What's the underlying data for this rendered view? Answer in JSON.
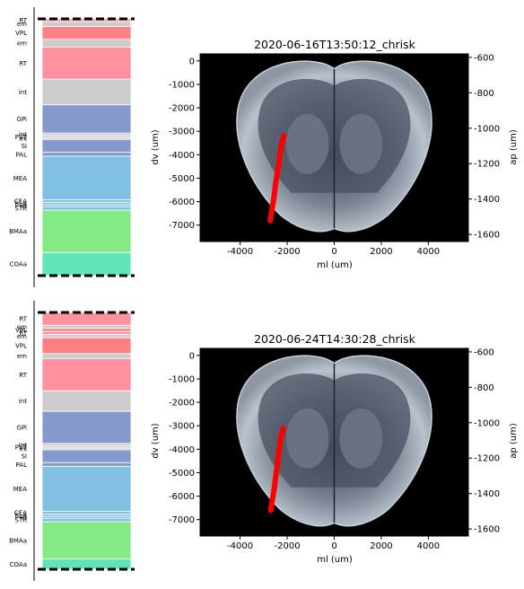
{
  "chart_data": [
    {
      "type": "bar",
      "subtype": "stacked-region-column",
      "regions": [
        {
          "label": "RT",
          "from": 0.0,
          "to": 0.01,
          "color": "#ff909f"
        },
        {
          "label": "em",
          "from": 0.01,
          "to": 0.03,
          "color": "#cccccc"
        },
        {
          "label": "VPL",
          "from": 0.03,
          "to": 0.08,
          "color": "#ff8080"
        },
        {
          "label": "em",
          "from": 0.08,
          "to": 0.11,
          "color": "#cccccc"
        },
        {
          "label": "RT",
          "from": 0.11,
          "to": 0.235,
          "color": "#ff909f"
        },
        {
          "label": "int",
          "from": 0.235,
          "to": 0.335,
          "color": "#cccccc"
        },
        {
          "label": "GPi",
          "from": 0.335,
          "to": 0.445,
          "color": "#8599cc"
        },
        {
          "label": "int",
          "from": 0.445,
          "to": 0.455,
          "color": "#cccccc"
        },
        {
          "label": "PVT",
          "from": 0.455,
          "to": 0.463,
          "color": "#cccccc"
        },
        {
          "label": "ml",
          "from": 0.463,
          "to": 0.47,
          "color": "#cccccc"
        },
        {
          "label": "SI",
          "from": 0.47,
          "to": 0.52,
          "color": "#8599cc"
        },
        {
          "label": "PAL",
          "from": 0.52,
          "to": 0.535,
          "color": "#8599cc"
        },
        {
          "label": "MEA",
          "from": 0.535,
          "to": 0.705,
          "color": "#80c0e2"
        },
        {
          "label": "CEA",
          "from": 0.705,
          "to": 0.715,
          "color": "#80c0e2"
        },
        {
          "label": "BLA",
          "from": 0.715,
          "to": 0.724,
          "color": "#80c0e2"
        },
        {
          "label": "IA",
          "from": 0.724,
          "to": 0.732,
          "color": "#80c0e2"
        },
        {
          "label": "STR",
          "from": 0.732,
          "to": 0.745,
          "color": "#80c0e2"
        },
        {
          "label": "BMAa",
          "from": 0.745,
          "to": 0.91,
          "color": "#84ea84"
        },
        {
          "label": "COAa",
          "from": 0.91,
          "to": 1.0,
          "color": "#61e7b7"
        }
      ]
    },
    {
      "type": "scatter",
      "title": "2020-06-16T13:50:12_chrisk",
      "xlabel": "ml (um)",
      "ylabel": "dv (um)",
      "y2label": "ap (um)",
      "xlim": [
        -5700,
        5700
      ],
      "ylim": [
        -7700,
        300
      ],
      "y2lim": [
        -1640,
        -580
      ],
      "xticks": [
        -4000,
        -2000,
        0,
        2000,
        4000
      ],
      "yticks": [
        0,
        -1000,
        -2000,
        -3000,
        -4000,
        -5000,
        -6000,
        -7000
      ],
      "y2ticks": [
        -600,
        -800,
        -1000,
        -1200,
        -1400,
        -1600
      ],
      "series": [
        {
          "color": "#ff0000",
          "x": [
            -2720,
            -2640,
            -2560,
            -2500,
            -2420,
            -2360,
            -2320,
            -2280,
            -2240,
            -2180,
            -2140
          ],
          "y": [
            -6800,
            -6300,
            -5800,
            -5300,
            -4800,
            -4400,
            -4100,
            -3800,
            -3550,
            -3350,
            -3200
          ]
        }
      ]
    },
    {
      "type": "bar",
      "subtype": "stacked-region-column",
      "regions": [
        {
          "label": "RT",
          "from": 0.0,
          "to": 0.05,
          "color": "#ff909f"
        },
        {
          "label": "em",
          "from": 0.05,
          "to": 0.062,
          "color": "#cccccc"
        },
        {
          "label": "VPL",
          "from": 0.062,
          "to": 0.074,
          "color": "#ff8080"
        },
        {
          "label": "RT",
          "from": 0.074,
          "to": 0.086,
          "color": "#ff909f"
        },
        {
          "label": "em",
          "from": 0.086,
          "to": 0.098,
          "color": "#cccccc"
        },
        {
          "label": "VPL",
          "from": 0.098,
          "to": 0.16,
          "color": "#ff8080"
        },
        {
          "label": "em",
          "from": 0.16,
          "to": 0.18,
          "color": "#cccccc"
        },
        {
          "label": "RT",
          "from": 0.18,
          "to": 0.305,
          "color": "#ff909f"
        },
        {
          "label": "int",
          "from": 0.305,
          "to": 0.385,
          "color": "#cccccc"
        },
        {
          "label": "GPi",
          "from": 0.385,
          "to": 0.51,
          "color": "#8599cc"
        },
        {
          "label": "int",
          "from": 0.51,
          "to": 0.52,
          "color": "#cccccc"
        },
        {
          "label": "PVT",
          "from": 0.52,
          "to": 0.528,
          "color": "#cccccc"
        },
        {
          "label": "ml",
          "from": 0.528,
          "to": 0.535,
          "color": "#cccccc"
        },
        {
          "label": "SI",
          "from": 0.535,
          "to": 0.585,
          "color": "#8599cc"
        },
        {
          "label": "PAL",
          "from": 0.585,
          "to": 0.6,
          "color": "#8599cc"
        },
        {
          "label": "MEA",
          "from": 0.6,
          "to": 0.775,
          "color": "#80c0e2"
        },
        {
          "label": "CEA",
          "from": 0.775,
          "to": 0.785,
          "color": "#80c0e2"
        },
        {
          "label": "BLA",
          "from": 0.785,
          "to": 0.794,
          "color": "#80c0e2"
        },
        {
          "label": "IA",
          "from": 0.794,
          "to": 0.802,
          "color": "#80c0e2"
        },
        {
          "label": "STR",
          "from": 0.802,
          "to": 0.815,
          "color": "#80c0e2"
        },
        {
          "label": "BMAa",
          "from": 0.815,
          "to": 0.96,
          "color": "#84ea84"
        },
        {
          "label": "COAa",
          "from": 0.96,
          "to": 1.0,
          "color": "#61e7b7"
        }
      ]
    },
    {
      "type": "scatter",
      "title": "2020-06-24T14:30:28_chrisk",
      "xlabel": "ml (um)",
      "ylabel": "dv (um)",
      "y2label": "ap (um)",
      "xlim": [
        -5700,
        5700
      ],
      "ylim": [
        -7700,
        300
      ],
      "y2lim": [
        -1640,
        -580
      ],
      "xticks": [
        -4000,
        -2000,
        0,
        2000,
        4000
      ],
      "yticks": [
        0,
        -1000,
        -2000,
        -3000,
        -4000,
        -5000,
        -6000,
        -7000
      ],
      "y2ticks": [
        -600,
        -800,
        -1000,
        -1200,
        -1400,
        -1600
      ],
      "series": [
        {
          "color": "#ff0000",
          "x": [
            -2700,
            -2620,
            -2540,
            -2480,
            -2420,
            -2380,
            -2340,
            -2300,
            -2260,
            -2200,
            -2160
          ],
          "y": [
            -6600,
            -6100,
            -5600,
            -5100,
            -4700,
            -4300,
            -4000,
            -3700,
            -3450,
            -3250,
            -3100
          ]
        }
      ]
    }
  ]
}
